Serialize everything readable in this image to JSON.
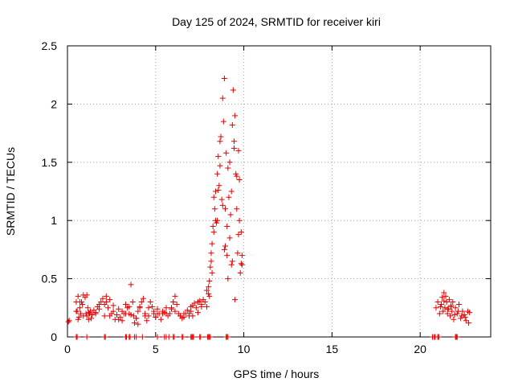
{
  "chart_data": {
    "type": "scatter",
    "title": "Day 125 of 2024, SRMTID for receiver kiri",
    "xlabel": "GPS time / hours",
    "ylabel": "SRMTID / TECUs",
    "xlim": [
      0,
      24
    ],
    "ylim": [
      0,
      2.5
    ],
    "xticks": [
      0,
      5,
      10,
      15,
      20
    ],
    "xtick_labels": [
      "0",
      "5",
      "10",
      "15",
      "20"
    ],
    "yticks": [
      0,
      0.5,
      1,
      1.5,
      2,
      2.5
    ],
    "ytick_labels": [
      "0",
      "0.5",
      "1",
      "1.5",
      "2",
      "2.5"
    ],
    "grid": true,
    "marker": "plus",
    "color": "#e00000",
    "series": [
      {
        "name": "SRMTID",
        "x": [
          0.05,
          0.5,
          0.55,
          0.6,
          0.65,
          0.7,
          0.75,
          0.8,
          0.85,
          0.9,
          1.0,
          1.05,
          1.1,
          1.15,
          1.2,
          1.25,
          1.3,
          1.35,
          1.4,
          1.5,
          1.6,
          1.7,
          1.8,
          1.9,
          2.0,
          2.1,
          2.2,
          2.3,
          2.4,
          2.5,
          2.6,
          2.7,
          2.8,
          2.9,
          3.0,
          3.1,
          3.2,
          3.3,
          3.4,
          3.5,
          3.6,
          3.7,
          3.75,
          3.8,
          3.9,
          4.0,
          4.1,
          4.2,
          4.3,
          4.4,
          4.5,
          4.6,
          4.7,
          4.8,
          4.9,
          5.0,
          5.1,
          5.2,
          5.3,
          5.4,
          5.5,
          5.6,
          5.7,
          5.8,
          5.9,
          6.0,
          6.1,
          6.2,
          6.3,
          6.4,
          6.5,
          6.6,
          6.7,
          6.8,
          6.9,
          7.0,
          7.1,
          7.2,
          7.3,
          7.4,
          7.5,
          7.6,
          7.7,
          7.8,
          7.9,
          8.0,
          8.05,
          8.1,
          8.15,
          8.2,
          8.25,
          8.3,
          8.35,
          8.4,
          8.45,
          8.5,
          8.55,
          8.6,
          8.65,
          8.7,
          8.75,
          8.8,
          8.85,
          8.9,
          8.95,
          9.0,
          9.05,
          9.1,
          9.15,
          9.2,
          9.25,
          9.3,
          9.35,
          9.4,
          9.45,
          9.5,
          9.55,
          9.6,
          9.65,
          9.7,
          9.75,
          9.8,
          9.85,
          9.9,
          0.1,
          0.5,
          1.1,
          2.2,
          3.5,
          4.0,
          5.0,
          6.0,
          7.0,
          8.0,
          8.2,
          8.5,
          8.9,
          9.1,
          9.3,
          9.5,
          9.7,
          9.9,
          0.6,
          0.9,
          1.6,
          2.1,
          2.6,
          3.1,
          3.6,
          4.1,
          4.6,
          5.1,
          5.6,
          6.1,
          6.6,
          7.1,
          7.6,
          0.7,
          1.2,
          1.8,
          2.4,
          2.9,
          3.3,
          3.9,
          4.4,
          4.9,
          5.4,
          5.9,
          6.4,
          6.9,
          7.4,
          7.9,
          8.05,
          8.15,
          8.3,
          8.4,
          8.55,
          8.65,
          8.8,
          8.95,
          9.05,
          9.2,
          9.35,
          9.45,
          9.6,
          9.75,
          9.85,
          20.9,
          21.0,
          21.1,
          21.2,
          21.25,
          21.3,
          21.35,
          21.4,
          21.45,
          21.5,
          21.55,
          21.6,
          21.65,
          21.7,
          21.75,
          21.8,
          21.85,
          21.9,
          22.0,
          22.1,
          22.2,
          22.3,
          22.4,
          22.5,
          22.6,
          22.7,
          22.8,
          21.15,
          21.35,
          21.55,
          21.75,
          21.95,
          22.15,
          22.35,
          22.55,
          22.75,
          20.7,
          20.85,
          21.05,
          22.05
        ],
        "y": [
          0.13,
          0.3,
          0.22,
          0.35,
          0.17,
          0.25,
          0.2,
          0.3,
          0.28,
          0.36,
          0.34,
          0.2,
          0.18,
          0.25,
          0.15,
          0.2,
          0.22,
          0.16,
          0.19,
          0.23,
          0.21,
          0.26,
          0.24,
          0.3,
          0.33,
          0.28,
          0.35,
          0.25,
          0.32,
          0.2,
          0.22,
          0.15,
          0.19,
          0.24,
          0.17,
          0.14,
          0.2,
          0.28,
          0.25,
          0.2,
          0.45,
          0.3,
          0.18,
          0.12,
          0.16,
          0.22,
          0.26,
          0.3,
          0.33,
          0.18,
          0.14,
          0.25,
          0.3,
          0.26,
          0.2,
          0.17,
          0.24,
          0.2,
          0.15,
          0.22,
          0.21,
          0.2,
          0.18,
          0.2,
          0.24,
          0.3,
          0.35,
          0.28,
          0.2,
          0.18,
          0.16,
          0.17,
          0.2,
          0.23,
          0.18,
          0.22,
          0.27,
          0.29,
          0.25,
          0.3,
          0.31,
          0.28,
          0.32,
          0.3,
          0.4,
          0.43,
          0.35,
          0.6,
          0.72,
          0.8,
          0.95,
          1.2,
          1.1,
          1.25,
          0.98,
          1.4,
          1.55,
          1.3,
          1.68,
          1.72,
          1.18,
          2.05,
          1.85,
          2.22,
          1.1,
          1.58,
          0.95,
          1.45,
          1.2,
          0.85,
          1.05,
          1.25,
          1.82,
          2.12,
          1.68,
          1.9,
          1.4,
          1.1,
          0.72,
          1.6,
          1.35,
          0.55,
          0.9,
          0.62,
          0.14,
          0.22,
          0.36,
          0.3,
          0.26,
          0.11,
          0.17,
          0.3,
          0.26,
          0.37,
          0.55,
          1.0,
          0.75,
          0.5,
          0.62,
          0.32,
          0.88,
          0.7,
          0.15,
          0.18,
          0.2,
          0.18,
          0.27,
          0.22,
          0.19,
          0.25,
          0.18,
          0.2,
          0.25,
          0.22,
          0.2,
          0.18,
          0.26,
          0.3,
          0.21,
          0.28,
          0.18,
          0.15,
          0.2,
          0.16,
          0.2,
          0.22,
          0.2,
          0.25,
          0.18,
          0.2,
          0.21,
          0.26,
          0.48,
          0.65,
          0.9,
          1.0,
          1.26,
          1.47,
          1.13,
          0.78,
          0.7,
          1.5,
          0.65,
          1.62,
          1.38,
          1.0,
          0.63,
          0.25,
          0.3,
          0.2,
          0.28,
          0.34,
          0.22,
          0.38,
          0.25,
          0.35,
          0.3,
          0.2,
          0.24,
          0.32,
          0.18,
          0.26,
          0.22,
          0.3,
          0.15,
          0.25,
          0.2,
          0.28,
          0.16,
          0.22,
          0.19,
          0.14,
          0.22,
          0.21,
          0.26,
          0.31,
          0.24,
          0.27,
          0.19,
          0.22,
          0.18,
          0.17,
          0.12,
          0.0,
          0.0,
          0.0,
          0.0
        ]
      }
    ],
    "zero_markers_x": [
      0.5,
      0.55,
      1.1,
      2.1,
      2.15,
      3.3,
      3.35,
      3.5,
      3.55,
      3.8,
      3.9,
      4.25,
      5.1,
      5.5,
      5.6,
      5.75,
      6.0,
      6.05,
      6.5,
      6.55,
      7.0,
      7.05,
      7.1,
      7.15,
      7.5,
      7.55,
      7.95,
      8.0,
      8.05,
      8.1,
      9.0,
      9.05,
      9.1,
      20.7,
      20.8,
      20.85,
      21.0,
      21.05,
      22.0,
      22.05,
      22.1
    ]
  }
}
